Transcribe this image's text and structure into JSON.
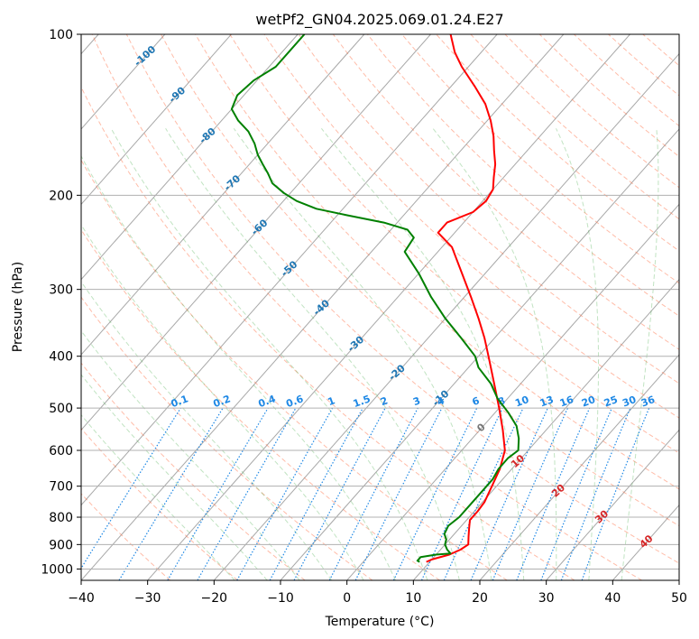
{
  "chart_data": {
    "type": "skew-t",
    "title": "wetPf2_GN04.2025.069.01.24.E27",
    "xlabel": "Temperature (°C)",
    "ylabel": "Pressure (hPa)",
    "xlim": [
      -40,
      50
    ],
    "ylim_pressure": [
      1050,
      100
    ],
    "y_scale": "log",
    "grid": true,
    "x_ticks": [
      -40,
      -30,
      -20,
      -10,
      0,
      10,
      20,
      30,
      40,
      50
    ],
    "x_tick_labels": [
      "−40",
      "−30",
      "−20",
      "−10",
      "0",
      "10",
      "20",
      "30",
      "40",
      "50"
    ],
    "y_ticks": [
      100,
      200,
      300,
      400,
      500,
      600,
      700,
      800,
      900,
      1000
    ],
    "y_tick_labels": [
      "100",
      "200",
      "300",
      "400",
      "500",
      "600",
      "700",
      "800",
      "900",
      "1000"
    ],
    "isotherm_labels": [
      {
        "value": -100,
        "label": "-100",
        "p": 110
      },
      {
        "value": -90,
        "label": "-90",
        "p": 130
      },
      {
        "value": -80,
        "label": "-80",
        "p": 155
      },
      {
        "value": -70,
        "label": "-70",
        "p": 190
      },
      {
        "value": -60,
        "label": "-60",
        "p": 230
      },
      {
        "value": -50,
        "label": "-50",
        "p": 275
      },
      {
        "value": -40,
        "label": "-40",
        "p": 325
      },
      {
        "value": -30,
        "label": "-30",
        "p": 380
      },
      {
        "value": -20,
        "label": "-20",
        "p": 430
      },
      {
        "value": -10,
        "label": "-10",
        "p": 480
      },
      {
        "value": 0,
        "label": "0",
        "p": 545
      },
      {
        "value": 10,
        "label": "10",
        "p": 630
      },
      {
        "value": 20,
        "label": "20",
        "p": 715
      },
      {
        "value": 30,
        "label": "30",
        "p": 800
      },
      {
        "value": 40,
        "label": "40",
        "p": 890
      }
    ],
    "mixing_ratio_labels": [
      "0.1",
      "0.2",
      "0.4",
      "0.6",
      "1",
      "1.5",
      "2",
      "3",
      "4",
      "6",
      "8",
      "10",
      "13",
      "16",
      "20",
      "25",
      "30",
      "36"
    ],
    "series": [
      {
        "name": "",
        "color": "#ff0000",
        "p": [
          970,
          960,
          940,
          920,
          900,
          870,
          840,
          810,
          780,
          750,
          700,
          650,
          600,
          550,
          500,
          450,
          400,
          370,
          340,
          310,
          280,
          250,
          235,
          225,
          215,
          205,
          195,
          185,
          175,
          165,
          155,
          145,
          135,
          125,
          115,
          108,
          100
        ],
        "t": [
          9.5,
          10.0,
          12.0,
          13.0,
          13.5,
          12.5,
          11.5,
          10.5,
          10.5,
          10.3,
          9.3,
          8.2,
          6.5,
          3.5,
          0.0,
          -4.0,
          -8.5,
          -11.5,
          -15.0,
          -19.0,
          -23.5,
          -28.5,
          -32.5,
          -32.5,
          -30.0,
          -29.5,
          -30.0,
          -31.5,
          -33.0,
          -35.0,
          -37.0,
          -39.5,
          -42.5,
          -46.5,
          -51.0,
          -54.0,
          -57.0
        ]
      },
      {
        "name": "",
        "color": "#008000",
        "p": [
          970,
          965,
          950,
          940,
          935,
          920,
          900,
          880,
          860,
          830,
          800,
          760,
          720,
          680,
          650,
          620,
          600,
          570,
          540,
          510,
          480,
          450,
          420,
          400,
          370,
          340,
          310,
          280,
          255,
          240,
          232,
          225,
          218,
          212,
          205,
          198,
          190,
          182,
          175,
          168,
          160,
          152,
          145,
          138,
          130,
          122,
          115,
          108,
          100
        ],
        "t": [
          8.5,
          8.0,
          8.0,
          10.0,
          12.0,
          11.0,
          10.0,
          9.5,
          8.5,
          8.0,
          8.5,
          8.5,
          8.5,
          8.5,
          8.0,
          8.0,
          8.5,
          7.0,
          5.0,
          2.0,
          -1.5,
          -4.5,
          -8.5,
          -10.5,
          -15.0,
          -20.0,
          -25.0,
          -30.0,
          -35.0,
          -35.5,
          -37.5,
          -42.0,
          -48.5,
          -54.0,
          -58.0,
          -61.0,
          -64.0,
          -66.0,
          -68.0,
          -70.0,
          -72.0,
          -74.5,
          -77.5,
          -80.0,
          -81.0,
          -80.5,
          -79.0,
          -79.0,
          -79.0
        ]
      }
    ]
  }
}
